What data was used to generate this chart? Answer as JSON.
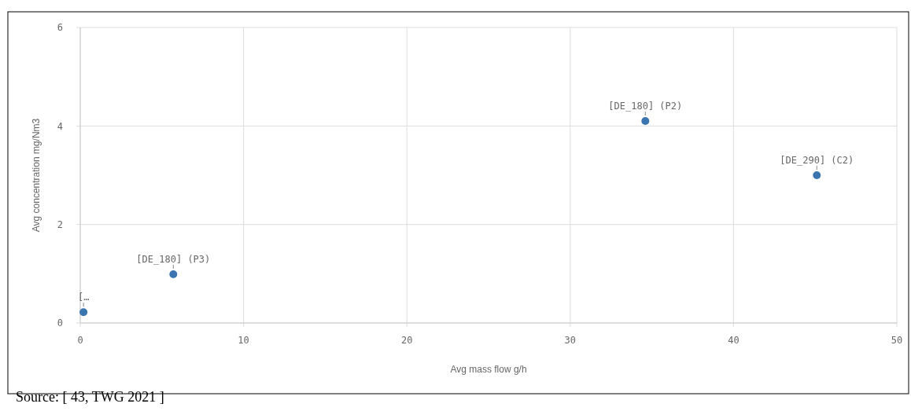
{
  "chart_data": {
    "type": "scatter",
    "xlabel": "Avg mass flow g/h",
    "ylabel": "Avg concentration mg/Nm3",
    "x": [
      0.2,
      5.7,
      34.6,
      45.1
    ],
    "series": [
      {
        "color": "#3b75af",
        "values": [
          0.22,
          0.99,
          4.1,
          3.0
        ],
        "value_labels": [
          "[…",
          "[DE_180] (P3)",
          "[DE_180] (P2)",
          "[DE_290] (C2)"
        ]
      }
    ],
    "xlim": [
      0,
      50
    ],
    "xticks": [
      0,
      10,
      20,
      30,
      40,
      50
    ],
    "ylim": [
      0,
      6
    ],
    "yticks": [
      0,
      2,
      4,
      6
    ],
    "grid": true,
    "marker": "circle",
    "annotations": [
      "Source: [ 43, TWG 2021 ]"
    ]
  }
}
